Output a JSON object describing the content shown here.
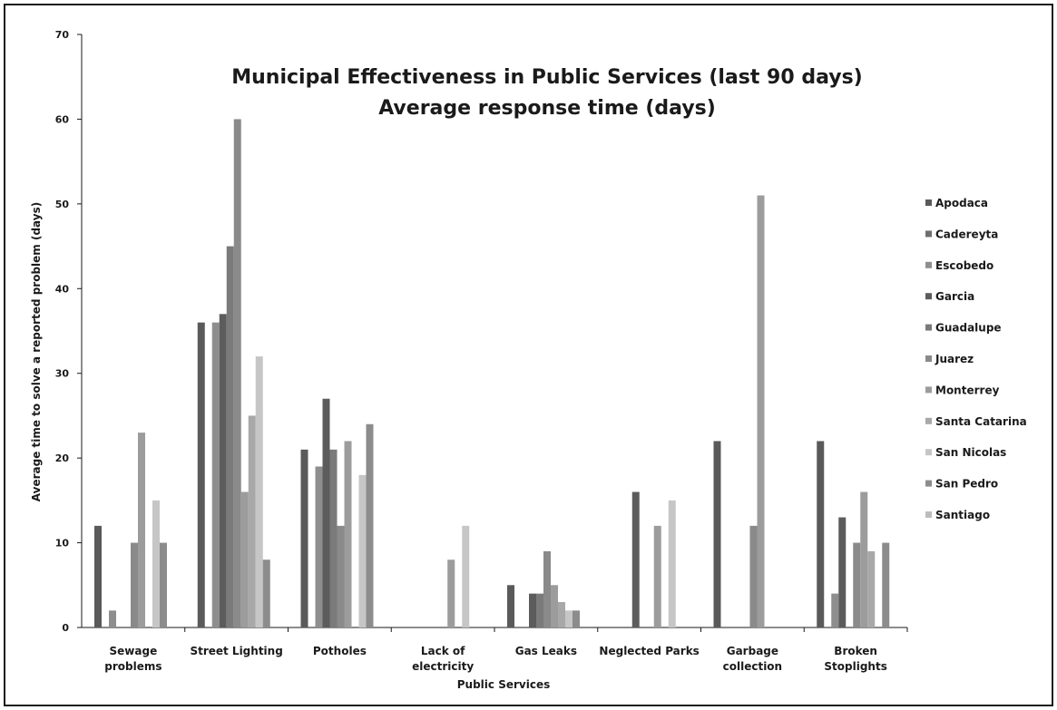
{
  "chart_data": {
    "type": "bar",
    "title_line1": "Municipal Effectiveness in Public Services (last 90 days)",
    "title_line2": "Average response time (days)",
    "xlabel": "Public Services",
    "ylabel": "Average time to solve a reported problem (days)",
    "ylim": [
      0,
      70
    ],
    "yticks": [
      0,
      10,
      20,
      30,
      40,
      50,
      60,
      70
    ],
    "grid": false,
    "legend_position": "right",
    "categories": [
      [
        "Sewage",
        "problems"
      ],
      [
        "Street Lighting"
      ],
      [
        "Potholes"
      ],
      [
        "Lack of",
        "electricity"
      ],
      [
        "Gas Leaks"
      ],
      [
        "Neglected Parks"
      ],
      [
        "Garbage",
        "collection"
      ],
      [
        "Broken",
        "Stoplights"
      ]
    ],
    "series": [
      {
        "name": "Apodaca",
        "color": "#5a5a5a",
        "values": [
          12,
          36,
          21,
          0,
          5,
          0,
          22,
          22
        ]
      },
      {
        "name": "Cadereyta",
        "color": "#6e6e6e",
        "values": [
          0,
          0,
          0,
          0,
          0,
          0,
          0,
          0
        ]
      },
      {
        "name": "Escobedo",
        "color": "#8e8e8e",
        "values": [
          2,
          36,
          19,
          0,
          0,
          0,
          0,
          4
        ]
      },
      {
        "name": "Garcia",
        "color": "#5c5c5c",
        "values": [
          0,
          37,
          27,
          0,
          4,
          16,
          0,
          13
        ]
      },
      {
        "name": "Guadalupe",
        "color": "#7a7a7a",
        "values": [
          0,
          45,
          21,
          0,
          4,
          0,
          0,
          0
        ]
      },
      {
        "name": "Juarez",
        "color": "#8a8a8a",
        "values": [
          10,
          60,
          12,
          0,
          9,
          0,
          12,
          10
        ]
      },
      {
        "name": "Monterrey",
        "color": "#9c9c9c",
        "values": [
          23,
          16,
          22,
          8,
          5,
          12,
          51,
          16
        ]
      },
      {
        "name": "Santa Catarina",
        "color": "#a8a8a8",
        "values": [
          0,
          25,
          0,
          0,
          3,
          0,
          0,
          9
        ]
      },
      {
        "name": "San Nicolas",
        "color": "#c6c6c6",
        "values": [
          15,
          32,
          18,
          12,
          2,
          15,
          0,
          0
        ]
      },
      {
        "name": "San Pedro",
        "color": "#8c8c8c",
        "values": [
          10,
          8,
          24,
          0,
          2,
          0,
          0,
          10
        ]
      },
      {
        "name": "Santiago",
        "color": "#bdbdbd",
        "values": [
          0,
          0,
          0,
          0,
          0,
          0,
          0,
          0
        ]
      }
    ]
  }
}
